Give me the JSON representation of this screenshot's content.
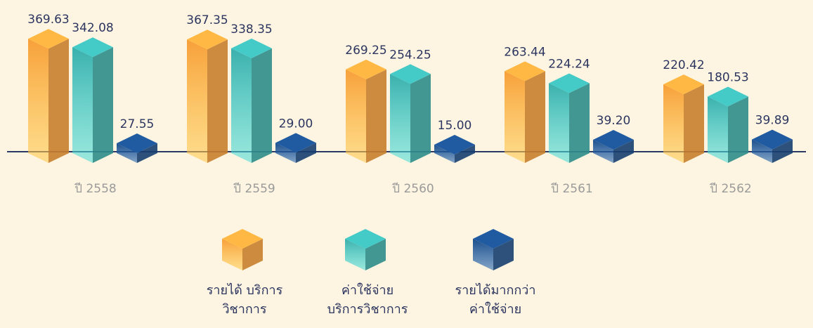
{
  "chart_data": {
    "type": "bar",
    "categories": [
      "ปี 2558",
      "ปี 2559",
      "ปี 2560",
      "ปี 2561",
      "ปี 2562"
    ],
    "series": [
      {
        "name": "รายได้ บริการวิชาการ",
        "color": "#f7a03a",
        "values": [
          369.63,
          367.35,
          269.25,
          263.44,
          220.42
        ],
        "value_labels": [
          "369.63",
          "367.35",
          "269.25",
          "263.44",
          "220.42"
        ]
      },
      {
        "name": "ค่าใช้จ่าย บริการวิชาการ",
        "color": "#3bb0ad",
        "values": [
          342.08,
          338.35,
          254.25,
          224.24,
          180.53
        ],
        "value_labels": [
          "342.08",
          "338.35",
          "254.25",
          "224.24",
          "180.53"
        ]
      },
      {
        "name": "รายได้มากกว่า ค่าใช้จ่าย",
        "color": "#1c4f8c",
        "values": [
          27.55,
          29.0,
          15.0,
          39.2,
          39.89
        ],
        "value_labels": [
          "27.55",
          "29.00",
          "15.00",
          "39.20",
          "39.89"
        ]
      }
    ],
    "ylim": [
      0,
      400
    ]
  }
}
